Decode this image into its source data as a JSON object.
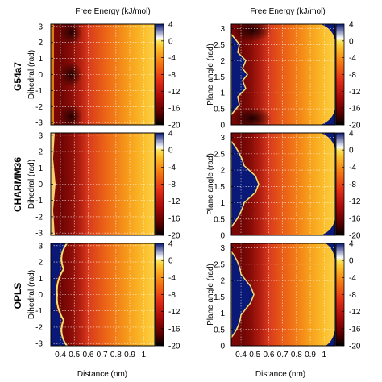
{
  "chart_data": {
    "type": "heatmap",
    "colorbar": {
      "title": "Free Energy (kJ/mol)",
      "range": [
        -20,
        4
      ],
      "ticks": [
        "4",
        "0",
        "-4",
        "-8",
        "-12",
        "-16",
        "-20"
      ],
      "tick_values": [
        4,
        0,
        -4,
        -8,
        -12,
        -16,
        -20
      ],
      "colormap": [
        "#000000",
        "#5a0000",
        "#aa0a0a",
        "#e43016",
        "#f57a12",
        "#fcc12a",
        "#f7e25a",
        "#ffffff",
        "#0a1878"
      ]
    },
    "columns": [
      {
        "xlabel": "",
        "ylabel": "Dihedral (rad)",
        "ylim": [
          -3.14,
          3.14
        ],
        "yticks": [
          "3",
          "2",
          "1",
          "0",
          "-1",
          "-2",
          "-3"
        ],
        "ytick_values": [
          3,
          2,
          1,
          0,
          -1,
          -2,
          -3
        ]
      },
      {
        "xlabel": "",
        "ylabel": "Plane angle (rad)",
        "ylim": [
          0,
          3.14
        ],
        "yticks": [
          "3",
          "2.5",
          "2",
          "1.5",
          "1",
          "0.5",
          "0"
        ],
        "ytick_values": [
          3,
          2.5,
          2,
          1.5,
          1,
          0.5,
          0
        ]
      }
    ],
    "rows": [
      {
        "label": "G54a7"
      },
      {
        "label": "CHARMM36"
      },
      {
        "label": "OPLS"
      }
    ],
    "x": {
      "label": "Distance (nm)",
      "xlim": [
        0.33,
        1.08
      ],
      "ticks": [
        "0.4",
        "0.5",
        "0.6",
        "0.7",
        "0.8",
        "0.9",
        "1"
      ],
      "tick_values": [
        0.4,
        0.5,
        0.6,
        0.7,
        0.8,
        0.9,
        1.0
      ]
    },
    "grid": true
  }
}
